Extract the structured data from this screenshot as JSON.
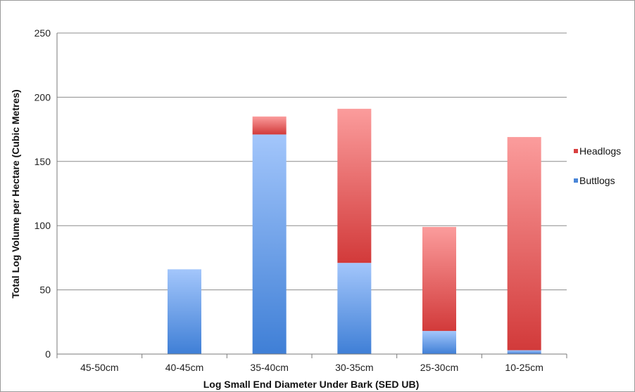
{
  "chart_data": {
    "type": "bar",
    "stacked": true,
    "title": "",
    "xlabel": "Log Small End Diameter Under Bark (SED UB)",
    "ylabel": "Total Log Volume per Hectare (Cubic Metres)",
    "ylim": [
      0,
      250
    ],
    "yticks": [
      "0",
      "50",
      "100",
      "150",
      "200",
      "250"
    ],
    "grid": true,
    "legend_position": "right",
    "categories": [
      "45-50cm",
      "40-45cm",
      "35-40cm",
      "30-35cm",
      "25-30cm",
      "10-25cm"
    ],
    "series": [
      {
        "name": "Buttlogs",
        "color": "#4a86d8",
        "values": [
          0,
          66,
          171,
          71,
          18,
          3
        ]
      },
      {
        "name": "Headlogs",
        "color": "#d94040",
        "values": [
          0,
          0,
          14,
          120,
          81,
          166
        ]
      }
    ]
  }
}
